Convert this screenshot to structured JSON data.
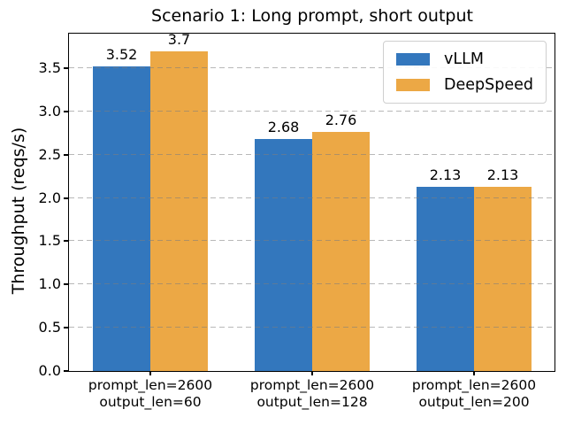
{
  "chart_data": {
    "type": "bar",
    "title": "Scenario 1: Long prompt, short output",
    "xlabel": "",
    "ylabel": "Throughput (reqs/s)",
    "categories": [
      [
        "prompt_len=2600",
        "output_len=60"
      ],
      [
        "prompt_len=2600",
        "output_len=128"
      ],
      [
        "prompt_len=2600",
        "output_len=200"
      ]
    ],
    "series": [
      {
        "name": "vLLM",
        "color": "#3377bd",
        "values": [
          3.52,
          2.68,
          2.13
        ]
      },
      {
        "name": "DeepSpeed",
        "color": "#eca845",
        "values": [
          3.7,
          2.76,
          2.13
        ]
      }
    ],
    "bar_value_labels": [
      [
        "3.52",
        "2.68",
        "2.13"
      ],
      [
        "3.7",
        "2.76",
        "2.13"
      ]
    ],
    "ylim": [
      0,
      3.9
    ],
    "yticks": [
      0,
      0.5,
      1,
      1.5,
      2,
      2.5,
      3,
      3.5
    ],
    "ytick_format": "one-decimal",
    "grid": {
      "axis": "y",
      "style": "dashed",
      "color": "#c9c9c9",
      "on": true
    },
    "legend": {
      "position": "upper right",
      "entries": [
        "vLLM",
        "DeepSpeed"
      ]
    },
    "background": "#ffffff"
  }
}
